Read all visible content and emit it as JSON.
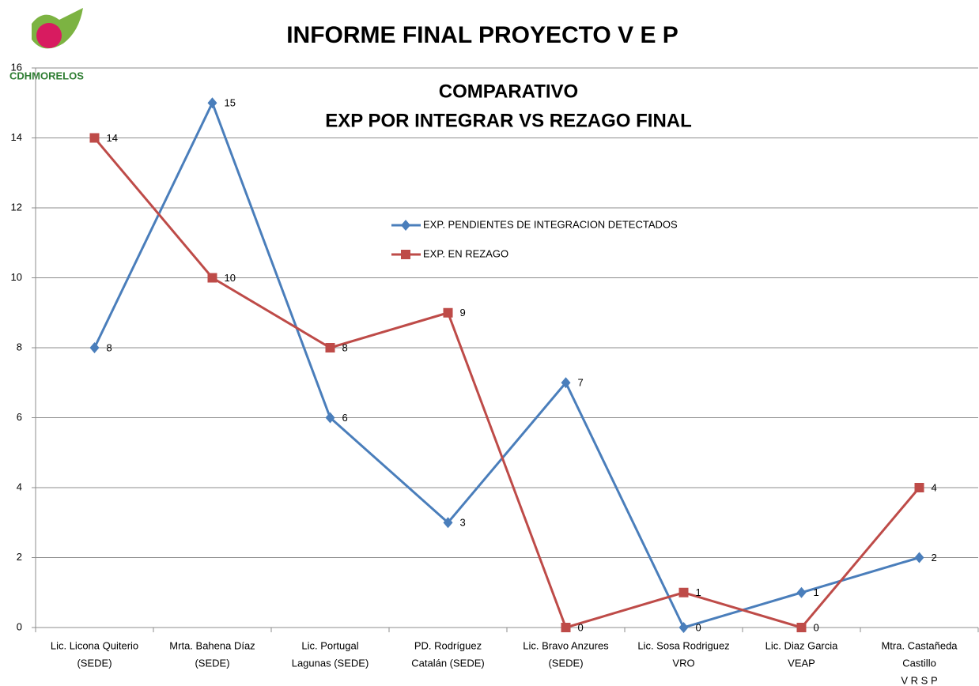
{
  "chart_data": {
    "type": "line",
    "title": "INFORME FINAL PROYECTO V E P",
    "subtitle": [
      "COMPARATIVO",
      "EXP POR INTEGRAR VS REZAGO FINAL"
    ],
    "logo": "CDHMORELOS",
    "categories": [
      [
        "Lic. Licona Quiterio",
        "(SEDE)"
      ],
      [
        "Mrta. Bahena Díaz",
        "(SEDE)"
      ],
      [
        "Lic. Portugal",
        "Lagunas (SEDE)"
      ],
      [
        "PD. Rodríguez",
        "Catalán (SEDE)"
      ],
      [
        "Lic. Bravo Anzures",
        "(SEDE)"
      ],
      [
        "Lic. Sosa Rodriguez",
        "VRO"
      ],
      [
        "Lic. Diaz Garcia",
        "VEAP"
      ],
      [
        "Mtra. Castañeda",
        "Castillo",
        "V R S P"
      ]
    ],
    "series": [
      {
        "name": "EXP. PENDIENTES DE INTEGRACION DETECTADOS",
        "color": "#4a7ebb",
        "marker": "diamond",
        "values": [
          8,
          15,
          6,
          3,
          7,
          0,
          1,
          2
        ]
      },
      {
        "name": "EXP. EN REZAGO",
        "color": "#be4b48",
        "marker": "square",
        "values": [
          14,
          10,
          8,
          9,
          0,
          1,
          0,
          4
        ]
      }
    ],
    "ylim": [
      0,
      16
    ],
    "yticks": [
      0,
      2,
      4,
      6,
      8,
      10,
      12,
      14,
      16
    ],
    "grid": true
  }
}
